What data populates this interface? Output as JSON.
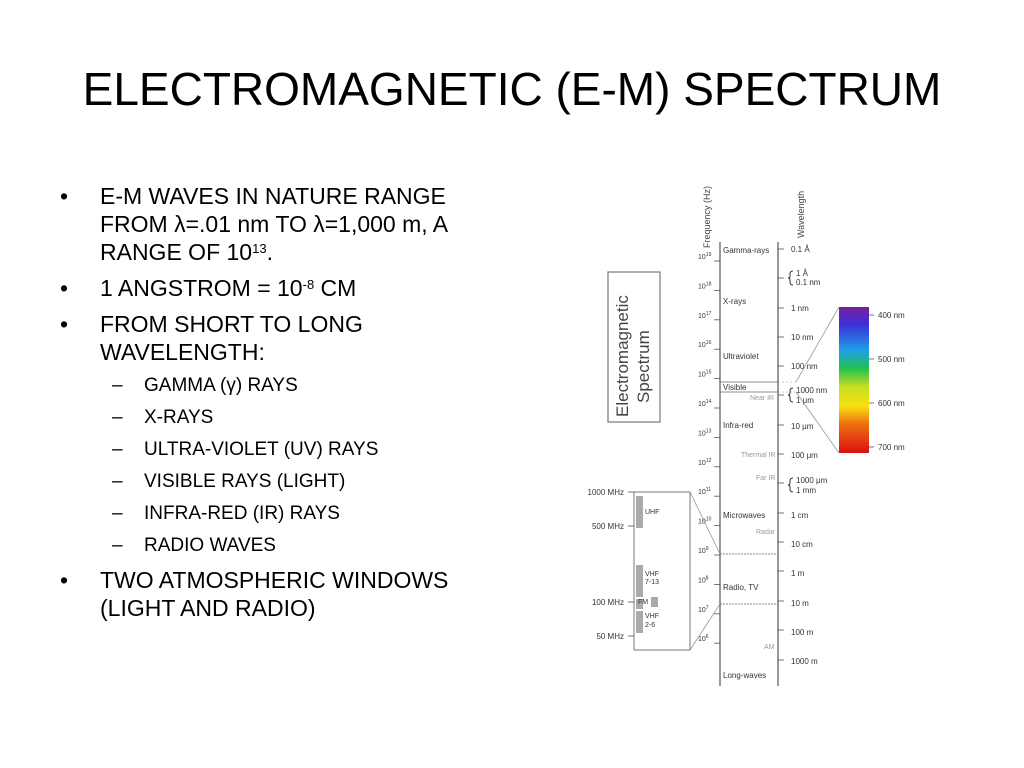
{
  "slide": {
    "title": "ELECTROMAGNETIC (E-M) SPECTRUM",
    "bullets": [
      {
        "parts": [
          "E-M WAVES IN NATURE RANGE FROM λ=.01 nm TO λ=1,000 m, A RANGE OF 10",
          "13",
          "."
        ]
      },
      {
        "parts": [
          "1 ANGSTROM = 10",
          "-8",
          " CM"
        ]
      },
      {
        "text": "FROM SHORT TO LONG WAVELENGTH:"
      },
      {
        "text": "TWO ATMOSPHERIC WINDOWS (LIGHT AND RADIO)"
      }
    ],
    "bullet_symbol": "•",
    "dash_symbol": "–",
    "sub_bullets": [
      "GAMMA (γ) RAYS",
      "X-RAYS",
      "ULTRA-VIOLET (UV) RAYS",
      "VISIBLE RAYS (LIGHT)",
      "INFRA-RED (IR) RAYS",
      "RADIO WAVES"
    ]
  },
  "diagram": {
    "box_title_1": "Electromagnetic",
    "box_title_2": "Spectrum",
    "freq_header": "Frequency (Hz)",
    "wave_header": "Wavelength",
    "frequencies": [
      "10",
      "10",
      "10",
      "10",
      "10",
      "10",
      "10",
      "10",
      "10",
      "10",
      "10",
      "10",
      "10",
      "10"
    ],
    "freq_exponents": [
      "19",
      "18",
      "17",
      "16",
      "15",
      "14",
      "13",
      "12",
      "11",
      "10",
      "9",
      "8",
      "7",
      "6"
    ],
    "regions": [
      "Gamma-rays",
      "X-rays",
      "Ultraviolet",
      "Visible",
      "Near IR",
      "Infra-red",
      "Thermal IR",
      "Far IR",
      "Microwaves",
      "Radar",
      "Radio, TV",
      "AM",
      "Long-waves"
    ],
    "wavelengths": [
      "0.1 Å",
      "1 Å",
      "0.1 nm",
      "1 nm",
      "10 nm",
      "100 nm",
      "1000 nm",
      "1 μm",
      "10 μm",
      "100 μm",
      "1000 μm",
      "1 mm",
      "1 cm",
      "10 cm",
      "1 m",
      "10 m",
      "100 m",
      "1000 m"
    ],
    "visible_scale": [
      "400 nm",
      "500 nm",
      "600 nm",
      "700 nm"
    ],
    "radio_scale": [
      "1000 MHz",
      "500 MHz",
      "100 MHz",
      "50 MHz"
    ],
    "radio_bands": [
      "UHF",
      "VHF",
      "7-13",
      "FM",
      "VHF",
      "2-6"
    ]
  }
}
